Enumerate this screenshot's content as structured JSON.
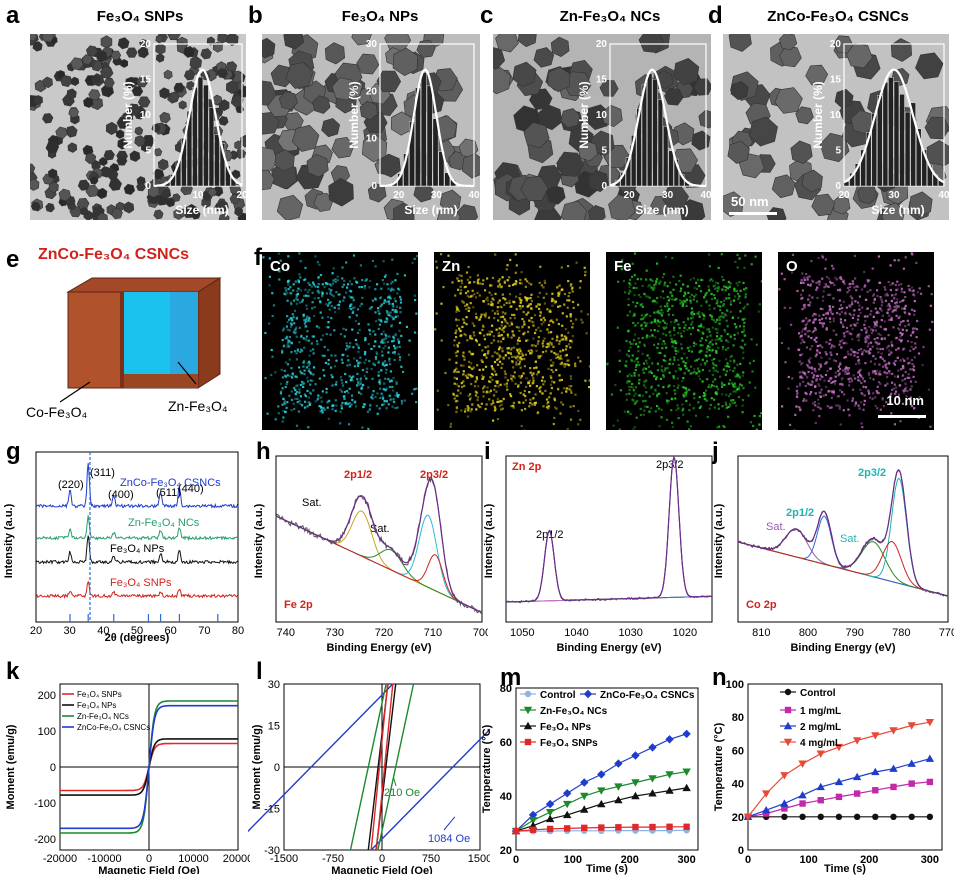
{
  "panels": {
    "a": {
      "letter": "a",
      "title": "Fe₃O₄ SNPs",
      "xlabel": "Size (nm)",
      "ylabel": "Number (%)",
      "xticks": [
        "10",
        "20"
      ],
      "yticks": [
        "0",
        "5",
        "10",
        "15",
        "20"
      ]
    },
    "b": {
      "letter": "b",
      "title": "Fe₃O₄ NPs",
      "xlabel": "Size (nm)",
      "ylabel": "Number (%)",
      "xticks": [
        "20",
        "30",
        "40"
      ],
      "yticks": [
        "0",
        "10",
        "20",
        "30"
      ]
    },
    "c": {
      "letter": "c",
      "title": "Zn-Fe₃O₄ NCs",
      "xlabel": "Size (nm)",
      "ylabel": "Number (%)",
      "xticks": [
        "20",
        "30",
        "40"
      ],
      "yticks": [
        "0",
        "5",
        "10",
        "15",
        "20"
      ]
    },
    "d": {
      "letter": "d",
      "title": "ZnCo-Fe₃O₄ CSNCs",
      "xlabel": "Size (nm)",
      "ylabel": "Number (%)",
      "xticks": [
        "20",
        "30",
        "40"
      ],
      "yticks": [
        "0",
        "5",
        "10",
        "15",
        "20"
      ],
      "scalebar": "50 nm"
    },
    "e": {
      "letter": "e",
      "title": "ZnCo-Fe₃O₄ CSNCs",
      "shell": "Co-Fe₃O₄",
      "core": "Zn-Fe₃O₄"
    },
    "f": {
      "letter": "f",
      "maps": [
        "Co",
        "Zn",
        "Fe",
        "O"
      ],
      "scalebar": "10 nm"
    },
    "g": {
      "letter": "g",
      "xlabel": "2θ (degrees)",
      "ylabel": "Intensity (a.u.)",
      "xticks": [
        "20",
        "30",
        "40",
        "50",
        "60",
        "70",
        "80"
      ],
      "peaks": [
        "(220)",
        "(311)",
        "(400)",
        "(511)",
        "(440)"
      ],
      "series": [
        "ZnCo-Fe₃O₄ CSNCs",
        "Zn-Fe₃O₄ NCs",
        "Fe₃O₄ NPs",
        "Fe₃O₄ SNPs"
      ]
    },
    "h": {
      "letter": "h",
      "element": "Fe 2p",
      "xlabel": "Binding Energy (eV)",
      "ylabel": "Intensity (a.u.)",
      "xticks": [
        "740",
        "730",
        "720",
        "710",
        "700"
      ],
      "peak1": "2p1/2",
      "peak2": "2p3/2",
      "sat1": "Sat.",
      "sat2": "Sat."
    },
    "i": {
      "letter": "i",
      "element": "Zn 2p",
      "xlabel": "Binding Energy (eV)",
      "ylabel": "Intensity (a.u.)",
      "xticks": [
        "1050",
        "1040",
        "1030",
        "1020"
      ],
      "peak1": "2p1/2",
      "peak2": "2p3/2"
    },
    "j": {
      "letter": "j",
      "element": "Co 2p",
      "xlabel": "Binding Energy (eV)",
      "ylabel": "Intensity (a.u.)",
      "xticks": [
        "810",
        "800",
        "790",
        "780",
        "770"
      ],
      "peak1": "2p1/2",
      "peak2": "2p3/2",
      "sat1": "Sat.",
      "sat2": "Sat."
    },
    "k": {
      "letter": "k",
      "xlabel": "Magnetic Field (Oe)",
      "ylabel": "Moment (emu/g)",
      "xticks": [
        "-20000",
        "-10000",
        "0",
        "10000",
        "20000"
      ],
      "yticks": [
        "200",
        "100",
        "0",
        "-100",
        "-200"
      ],
      "legend": [
        "Fe₃O₄ SNPs",
        "Fe₃O₄ NPs",
        "Zn-Fe₃O₄ NCs",
        "ZnCo-Fe₃O₄ CSNCs"
      ]
    },
    "l": {
      "letter": "l",
      "xlabel": "Magnetic Field (Oe)",
      "ylabel": "Moment (emu/g)",
      "xticks": [
        "-1500",
        "-750",
        "0",
        "750",
        "1500"
      ],
      "yticks": [
        "30",
        "15",
        "0",
        "-15",
        "-30"
      ],
      "coerc1": "210 Oe",
      "coerc2": "1084 Oe"
    },
    "m": {
      "letter": "m",
      "xlabel": "Time (s)",
      "ylabel": "Temperature (°C)",
      "xticks": [
        "0",
        "100",
        "200",
        "300"
      ],
      "yticks": [
        "20",
        "40",
        "60",
        "80"
      ]
    },
    "n": {
      "letter": "n",
      "xlabel": "Time (s)",
      "ylabel": "Temperature (°C)",
      "xticks": [
        "0",
        "100",
        "200",
        "300"
      ],
      "yticks": [
        "0",
        "20",
        "40",
        "60",
        "80",
        "100"
      ]
    }
  },
  "chart_data": [
    {
      "type": "line",
      "id": "m",
      "title": "",
      "xlabel": "Time (s)",
      "ylabel": "Temperature (°C)",
      "xlim": [
        0,
        320
      ],
      "ylim": [
        20,
        80
      ],
      "x": [
        0,
        30,
        60,
        90,
        120,
        150,
        180,
        210,
        240,
        270,
        300
      ],
      "series": [
        {
          "name": "Control",
          "color": "#8fb4e3",
          "marker": "circle",
          "values": [
            27,
            27,
            27,
            27.1,
            27.1,
            27.1,
            27.2,
            27.2,
            27.2,
            27.2,
            27.3
          ]
        },
        {
          "name": "ZnCo-Fe₃O₄ CSNCs",
          "color": "#1f3ccc",
          "marker": "diamond",
          "values": [
            27,
            33,
            37,
            41,
            45,
            48,
            52,
            55,
            58,
            61,
            63
          ]
        },
        {
          "name": "Zn-Fe₃O₄ NCs",
          "color": "#1b8a2e",
          "marker": "triangle-down",
          "values": [
            27,
            31,
            34,
            37,
            40,
            42,
            43.5,
            45,
            46.5,
            48,
            49
          ]
        },
        {
          "name": "Fe₃O₄ NPs",
          "color": "#111111",
          "marker": "triangle",
          "values": [
            27,
            29,
            31.5,
            33,
            35,
            37,
            38.5,
            40,
            41,
            42,
            43
          ]
        },
        {
          "name": "Fe₃O₄ SNPs",
          "color": "#e0282b",
          "marker": "square",
          "values": [
            27,
            27.5,
            27.8,
            28,
            28.2,
            28.3,
            28.4,
            28.5,
            28.5,
            28.6,
            28.6
          ]
        }
      ]
    },
    {
      "type": "line",
      "id": "n",
      "title": "",
      "xlabel": "Time (s)",
      "ylabel": "Temperature (°C)",
      "xlim": [
        0,
        320
      ],
      "ylim": [
        0,
        100
      ],
      "x": [
        0,
        30,
        60,
        90,
        120,
        150,
        180,
        210,
        240,
        270,
        300
      ],
      "series": [
        {
          "name": "Control",
          "color": "#111111",
          "marker": "circle",
          "values": [
            20,
            20,
            20,
            20,
            20,
            20,
            20,
            20,
            20,
            20,
            20
          ]
        },
        {
          "name": "1 mg/mL",
          "color": "#c02aa8",
          "marker": "square",
          "values": [
            20,
            22,
            25,
            28,
            30,
            32,
            34,
            36,
            38,
            40,
            41
          ]
        },
        {
          "name": "2 mg/mL",
          "color": "#1f3ccc",
          "marker": "triangle",
          "values": [
            20,
            24,
            28,
            33,
            38,
            41,
            44,
            47,
            49,
            52,
            55
          ]
        },
        {
          "name": "4 mg/mL",
          "color": "#e84a3a",
          "marker": "triangle-down",
          "values": [
            20,
            34,
            45,
            52,
            58,
            62,
            66,
            69,
            72,
            75,
            77
          ]
        }
      ]
    }
  ]
}
